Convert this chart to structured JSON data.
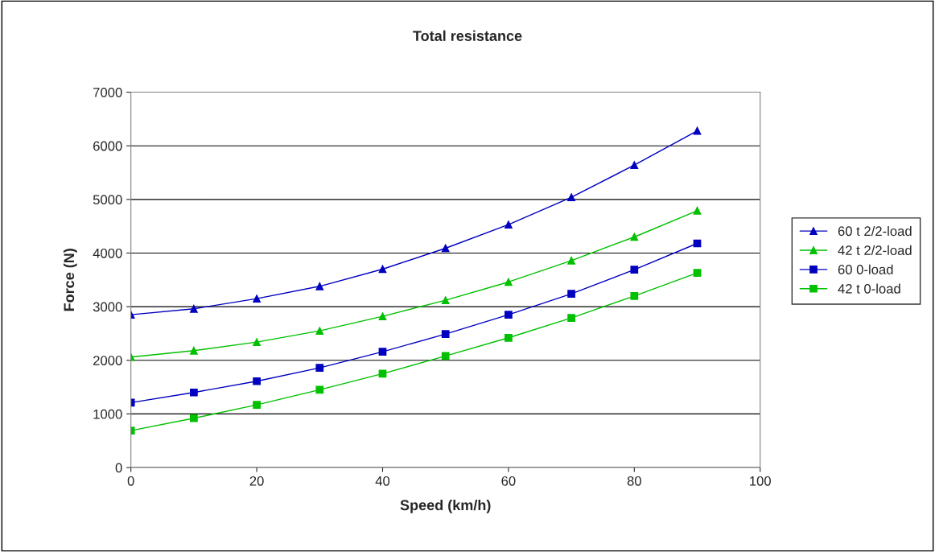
{
  "chart_data": {
    "type": "line",
    "title": "Total resistance",
    "xlabel": "Speed (km/h)",
    "ylabel": "Force (N)",
    "x": [
      0,
      10,
      20,
      30,
      40,
      50,
      60,
      70,
      80,
      90
    ],
    "series": [
      {
        "name": "60 t 2/2-load",
        "color": "#0000c0",
        "marker": "triangle",
        "values": [
          2850,
          2960,
          3150,
          3380,
          3700,
          4090,
          4530,
          5040,
          5640,
          6280
        ]
      },
      {
        "name": "42 t 2/2-load",
        "color": "#00c000",
        "marker": "triangle",
        "values": [
          2060,
          2180,
          2340,
          2550,
          2820,
          3120,
          3460,
          3860,
          4300,
          4790
        ]
      },
      {
        "name": "60 0-load",
        "color": "#0000c0",
        "marker": "square",
        "values": [
          1210,
          1400,
          1610,
          1860,
          2160,
          2490,
          2850,
          3240,
          3690,
          4180
        ]
      },
      {
        "name": "42 t 0-load",
        "color": "#00c000",
        "marker": "square",
        "values": [
          690,
          920,
          1170,
          1450,
          1750,
          2080,
          2420,
          2790,
          3200,
          3630
        ]
      }
    ],
    "xlim": [
      0,
      100
    ],
    "xticks": [
      0,
      20,
      40,
      60,
      80,
      100
    ],
    "ylim": [
      0,
      7000
    ],
    "yticks": [
      0,
      1000,
      2000,
      3000,
      4000,
      5000,
      6000,
      7000
    ],
    "grid": "y",
    "legend": "right"
  }
}
